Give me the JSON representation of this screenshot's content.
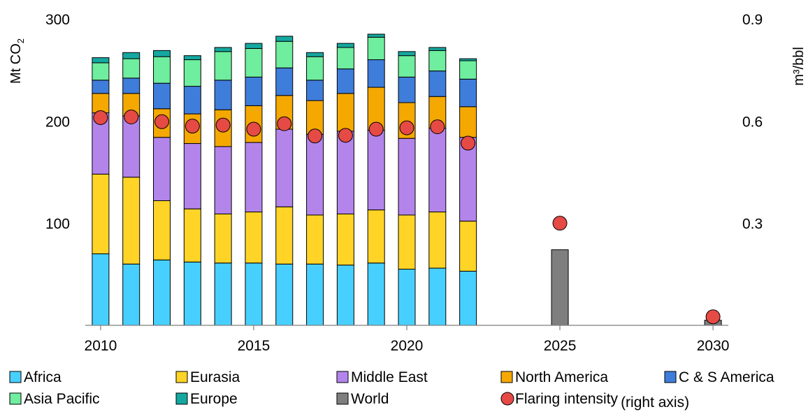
{
  "chart_data": {
    "type": "bar",
    "stacked": true,
    "x": [
      2010,
      2011,
      2012,
      2013,
      2014,
      2015,
      2016,
      2017,
      2018,
      2019,
      2020,
      2021,
      2022,
      2025,
      2030
    ],
    "x_ticks": [
      "2010",
      "2015",
      "2020",
      "2025",
      "2030"
    ],
    "xlim": [
      2009.5,
      2030.5
    ],
    "ylabel_main": "Mt CO",
    "ylabel_sub": "2",
    "ylim": [
      0,
      300
    ],
    "y_ticks": [
      "100",
      "200",
      "300"
    ],
    "y2label": "m³/bbl",
    "y2lim": [
      0,
      0.9
    ],
    "y2_ticks": [
      "0.3",
      "0.6",
      "0.9"
    ],
    "legend_position": "bottom",
    "legend_suffix": "(right axis)",
    "series": [
      {
        "name": "Africa",
        "color": "#47D0FF",
        "values": [
          70,
          60,
          64,
          62,
          61,
          61,
          60,
          60,
          59,
          61,
          55,
          56,
          53,
          null,
          null
        ]
      },
      {
        "name": "Eurasia",
        "color": "#FFD426",
        "values": [
          78,
          85,
          58,
          52,
          48,
          50,
          56,
          48,
          50,
          52,
          53,
          55,
          49,
          null,
          null
        ]
      },
      {
        "name": "Middle East",
        "color": "#B385EB",
        "values": [
          60,
          60,
          62,
          64,
          66,
          68,
          76,
          79,
          81,
          78,
          75,
          82,
          82,
          null,
          null
        ]
      },
      {
        "name": "North America",
        "color": "#F4A800",
        "values": [
          19,
          22,
          28,
          29,
          36,
          36,
          33,
          33,
          37,
          42,
          35,
          31,
          30,
          null,
          null
        ]
      },
      {
        "name": "C & S America",
        "color": "#3F7DDB",
        "values": [
          13,
          15,
          25,
          27,
          29,
          28,
          27,
          20,
          24,
          27,
          25,
          25,
          27,
          null,
          null
        ]
      },
      {
        "name": "Asia Pacific",
        "color": "#6EEE9E",
        "values": [
          17,
          19,
          26,
          26,
          28,
          28,
          26,
          23,
          21,
          22,
          21,
          20,
          18,
          null,
          null
        ]
      },
      {
        "name": "Europe",
        "color": "#14A8A0",
        "values": [
          5,
          6,
          6,
          4,
          4,
          5,
          5,
          4,
          4,
          3,
          4,
          3,
          2,
          null,
          null
        ]
      },
      {
        "name": "World",
        "color": "#7F7F7F",
        "values": [
          null,
          null,
          null,
          null,
          null,
          null,
          null,
          null,
          null,
          null,
          null,
          null,
          null,
          74,
          5
        ]
      }
    ],
    "line_series": {
      "name": "Flaring intensity",
      "axis": "right",
      "color": "#E64A45",
      "values": [
        0.61,
        0.612,
        0.598,
        0.585,
        0.588,
        0.576,
        0.592,
        0.556,
        0.558,
        0.576,
        0.58,
        0.583,
        0.535,
        0.3,
        0.025
      ]
    }
  }
}
